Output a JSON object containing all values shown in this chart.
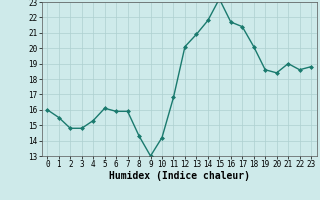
{
  "x": [
    0,
    1,
    2,
    3,
    4,
    5,
    6,
    7,
    8,
    9,
    10,
    11,
    12,
    13,
    14,
    15,
    16,
    17,
    18,
    19,
    20,
    21,
    22,
    23
  ],
  "y": [
    16.0,
    15.5,
    14.8,
    14.8,
    15.3,
    16.1,
    15.9,
    15.9,
    14.3,
    13.0,
    14.2,
    16.8,
    20.1,
    20.9,
    21.8,
    23.2,
    21.7,
    21.4,
    20.1,
    18.6,
    18.4,
    19.0,
    18.6,
    18.8
  ],
  "line_color": "#1a7a6e",
  "marker": "D",
  "marker_size": 2.0,
  "bg_color": "#ceeaea",
  "grid_color": "#aed0d0",
  "xlabel": "Humidex (Indice chaleur)",
  "ylim": [
    13,
    23
  ],
  "xlim": [
    -0.5,
    23.5
  ],
  "yticks": [
    13,
    14,
    15,
    16,
    17,
    18,
    19,
    20,
    21,
    22,
    23
  ],
  "xticks": [
    0,
    1,
    2,
    3,
    4,
    5,
    6,
    7,
    8,
    9,
    10,
    11,
    12,
    13,
    14,
    15,
    16,
    17,
    18,
    19,
    20,
    21,
    22,
    23
  ],
  "tick_fontsize": 5.5,
  "xlabel_fontsize": 7.0,
  "linewidth": 1.0
}
